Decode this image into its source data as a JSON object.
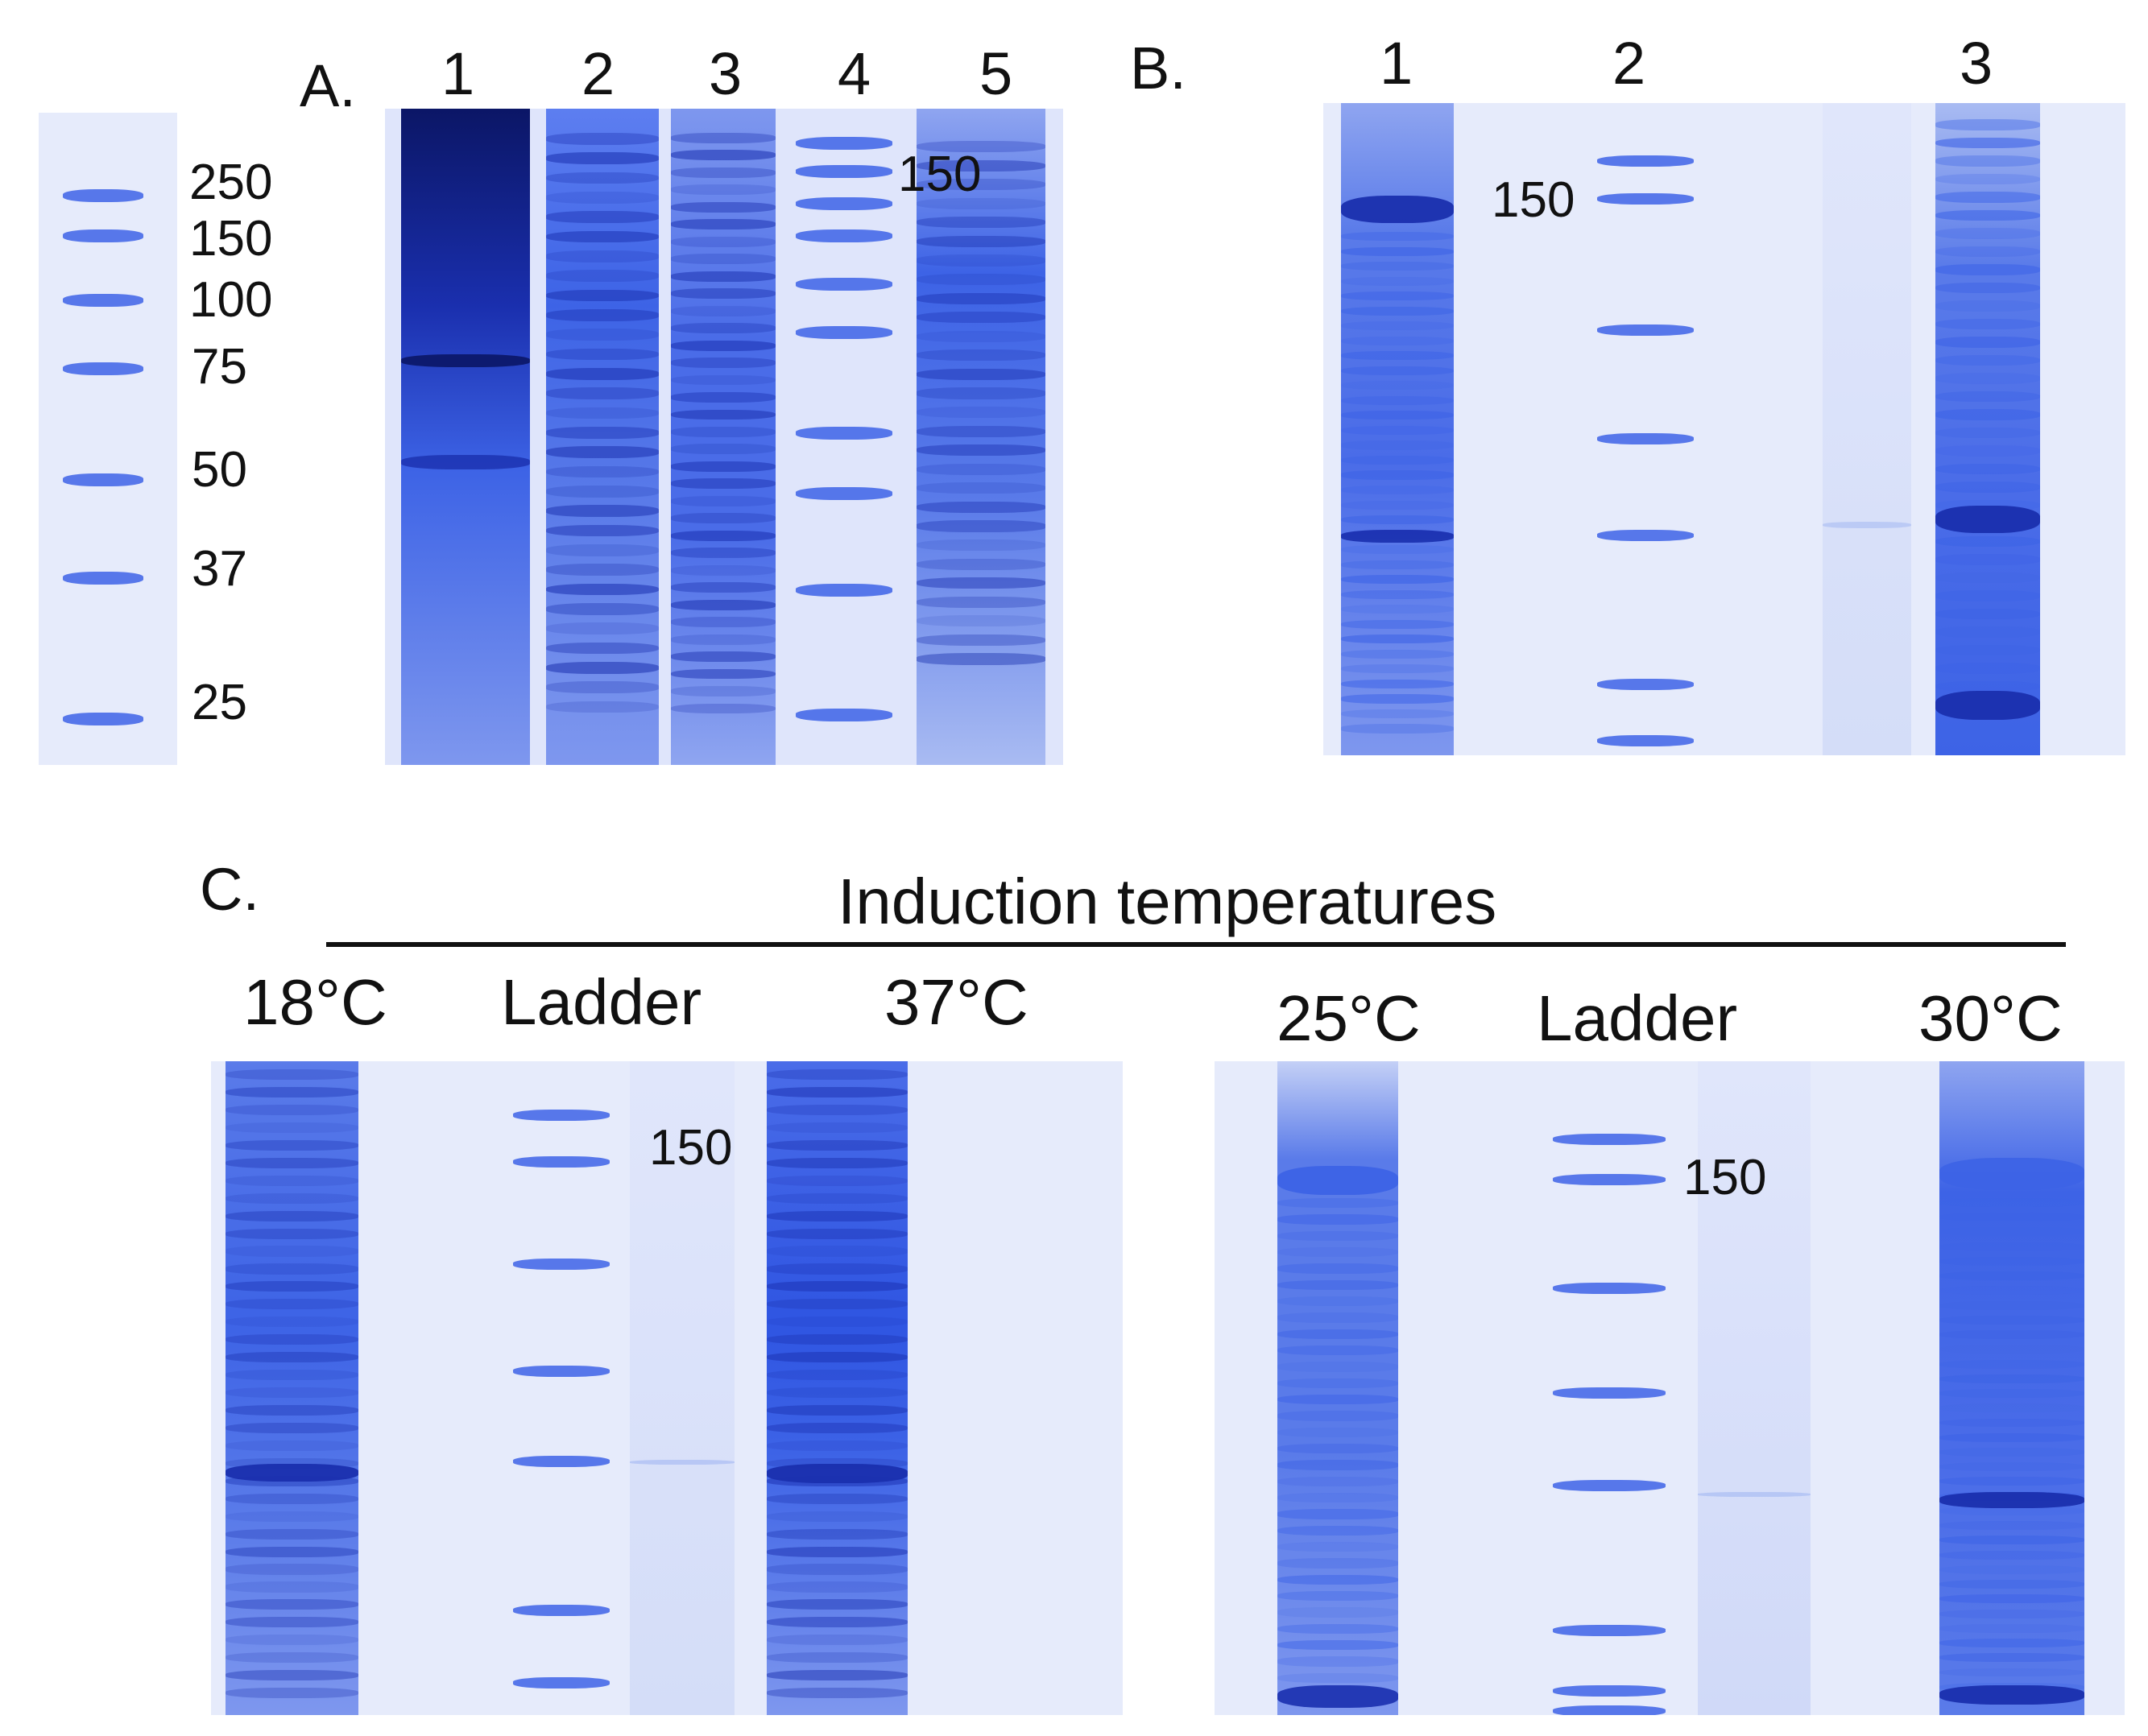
{
  "colors": {
    "gel_background": "#e6ebfb",
    "stain_light": "#b4c4f4",
    "stain_medium": "#3d63e6",
    "stain_dark": "#1a2fae",
    "stain_darkest": "#0b1666",
    "text": "#111111"
  },
  "panel_a": {
    "letter": "A.",
    "lanes": [
      "1",
      "2",
      "3",
      "4",
      "5"
    ],
    "marker_labels": [
      "250",
      "150",
      "100",
      "75",
      "50",
      "37",
      "25"
    ],
    "inset_label": "150"
  },
  "panel_b": {
    "letter": "B.",
    "lanes": [
      "1",
      "2",
      "3"
    ],
    "marker_label": "150"
  },
  "panel_c": {
    "letter": "C.",
    "heading": "Induction temperatures",
    "left_gel": {
      "lanes": [
        "18°C",
        "Ladder",
        "37°C"
      ],
      "marker_label": "150"
    },
    "right_gel": {
      "lanes": [
        "25°C",
        "Ladder",
        "30°C"
      ],
      "marker_label": "150"
    }
  }
}
